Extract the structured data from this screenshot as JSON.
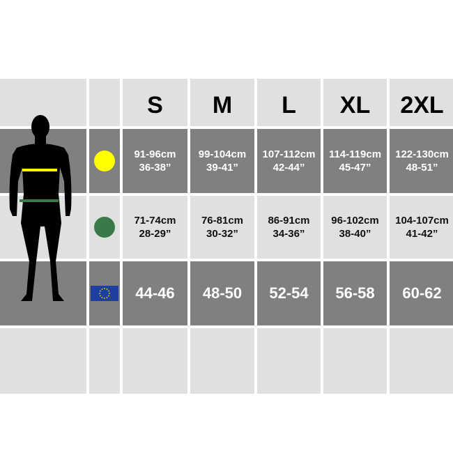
{
  "sizes": [
    "S",
    "M",
    "L",
    "XL",
    "2XL"
  ],
  "chest": {
    "icon": "yellow-circle",
    "color": "#ffff00",
    "values": [
      {
        "cm": "91-96cm",
        "in": "36-38”"
      },
      {
        "cm": "99-104cm",
        "in": "39-41”"
      },
      {
        "cm": "107-112cm",
        "in": "42-44”"
      },
      {
        "cm": "114-119cm",
        "in": "45-47”"
      },
      {
        "cm": "122-130cm",
        "in": "48-51”"
      }
    ]
  },
  "waist": {
    "icon": "green-circle",
    "color": "#3a7a4a",
    "values": [
      {
        "cm": "71-74cm",
        "in": "28-29”"
      },
      {
        "cm": "76-81cm",
        "in": "30-32”"
      },
      {
        "cm": "86-91cm",
        "in": "34-36”"
      },
      {
        "cm": "96-102cm",
        "in": "38-40”"
      },
      {
        "cm": "104-107cm",
        "in": "41-42”"
      }
    ]
  },
  "eu": {
    "icon": "eu-flag",
    "values": [
      "44-46",
      "48-50",
      "52-54",
      "56-58",
      "60-62"
    ]
  }
}
